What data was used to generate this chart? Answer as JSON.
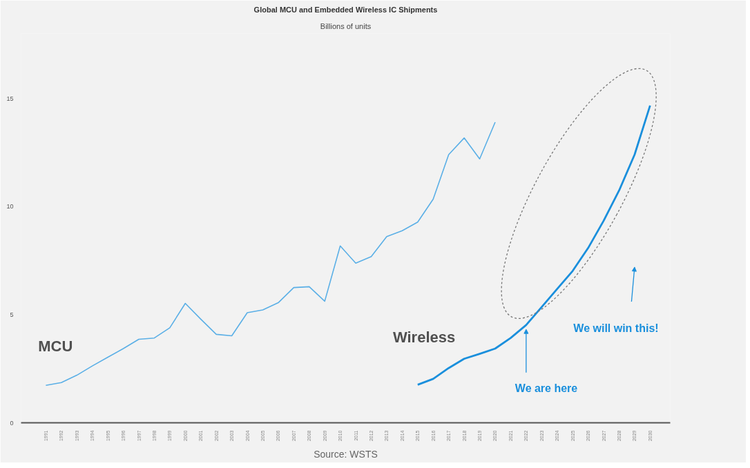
{
  "chart_data": {
    "type": "line",
    "title": "Global MCU and Embedded Wireless IC Shipments",
    "subtitle": "Billions of units",
    "categories": [
      "1991",
      "1992",
      "1993",
      "1994",
      "1995",
      "1996",
      "1997",
      "1998",
      "1999",
      "2000",
      "2001",
      "2002",
      "2003",
      "2004",
      "2005",
      "2006",
      "2007",
      "2008",
      "2009",
      "2010",
      "2011",
      "2012",
      "2013",
      "2014",
      "2015",
      "2016",
      "2017",
      "2018",
      "2019",
      "2020",
      "2021",
      "2022",
      "2023",
      "2024",
      "2025",
      "2026",
      "2027",
      "2028",
      "2029",
      "2030"
    ],
    "series": [
      {
        "name": "MCU",
        "color": "#5aafe6",
        "values": [
          1.73,
          1.86,
          2.2,
          2.63,
          3.03,
          3.43,
          3.86,
          3.92,
          4.39,
          5.52,
          4.79,
          4.09,
          4.02,
          5.09,
          5.22,
          5.55,
          6.25,
          6.29,
          5.62,
          8.18,
          7.38,
          7.68,
          8.61,
          8.88,
          9.28,
          10.34,
          12.4,
          13.17,
          12.2,
          13.9,
          null,
          null,
          null,
          null,
          null,
          null,
          null,
          null,
          null,
          null
        ]
      },
      {
        "name": "Wireless",
        "color": "#1a8fdc",
        "values": [
          null,
          null,
          null,
          null,
          null,
          null,
          null,
          null,
          null,
          null,
          null,
          null,
          null,
          null,
          null,
          null,
          null,
          null,
          null,
          null,
          null,
          null,
          null,
          null,
          1.76,
          2.03,
          2.53,
          2.96,
          3.19,
          3.43,
          3.92,
          4.52,
          5.35,
          6.19,
          7.02,
          8.08,
          9.34,
          10.74,
          12.4,
          14.67
        ]
      }
    ],
    "ylim": [
      0,
      18
    ],
    "yticks": [
      0,
      5,
      10,
      15
    ],
    "grid": false,
    "annotations": [
      {
        "text": "We are here",
        "x": "2022",
        "y": 4.52
      },
      "We will win this!",
      "Source: WSTS"
    ]
  }
}
